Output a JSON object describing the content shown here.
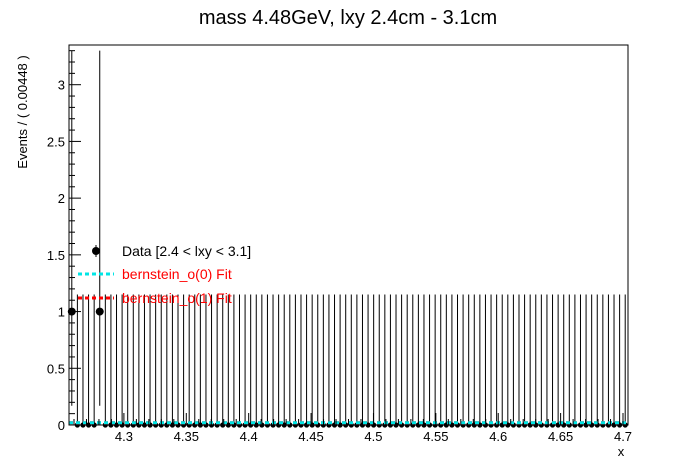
{
  "chart_data": {
    "type": "scatter",
    "title": "mass 4.48GeV, lxy 2.4cm - 3.1cm",
    "xlabel": "x",
    "ylabel": "Events / ( 0.00448 )",
    "xlim": [
      4.256,
      4.704
    ],
    "ylim": [
      0,
      3.35
    ],
    "x_ticks": [
      "4.3",
      "4.35",
      "4.4",
      "4.45",
      "4.5",
      "4.55",
      "4.6",
      "4.65",
      "4.7"
    ],
    "y_ticks": [
      "0",
      "0.5",
      "1",
      "1.5",
      "2",
      "2.5",
      "3"
    ],
    "bin_width": 0.00448,
    "legend": {
      "placement": "middle-left",
      "entries": [
        {
          "label": "Data [2.4 < lxy < 3.1]",
          "color": "#000000",
          "style": "marker"
        },
        {
          "label": "bernstein_o(0) Fit",
          "color": "#00e5e5",
          "style": "dashed"
        },
        {
          "label": "bernstein_o(1) Fit",
          "color": "#ff0000",
          "style": "dashed"
        }
      ]
    },
    "series": [
      {
        "name": "Data [2.4 < lxy < 3.1]",
        "nonzero_points": [
          {
            "x": 4.2582,
            "y": 1,
            "err_high": 2.3,
            "err_low": 0.83
          },
          {
            "x": 4.2806,
            "y": 1,
            "err_high": 2.3,
            "err_low": 0.83
          }
        ],
        "zero_error_high": 1.15
      },
      {
        "name": "bernstein_o(0) Fit",
        "y": 0.02
      },
      {
        "name": "bernstein_o(1) Fit",
        "y": 0.02
      }
    ],
    "grid": false
  }
}
